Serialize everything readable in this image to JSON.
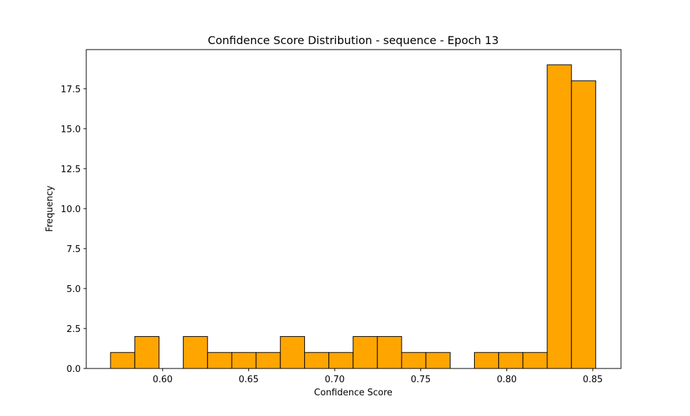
{
  "chart_data": {
    "type": "bar",
    "title": "Confidence Score Distribution - sequence - Epoch 13",
    "xlabel": "Confidence Score",
    "ylabel": "Frequency",
    "xlim": [
      0.5556,
      0.8664
    ],
    "ylim": [
      0,
      19.95
    ],
    "x_ticks": [
      "0.60",
      "0.65",
      "0.70",
      "0.75",
      "0.80",
      "0.85"
    ],
    "x_tick_values": [
      0.6,
      0.65,
      0.7,
      0.75,
      0.8,
      0.85
    ],
    "y_ticks": [
      "0.0",
      "2.5",
      "5.0",
      "7.5",
      "10.0",
      "12.5",
      "15.0",
      "17.5"
    ],
    "y_tick_values": [
      0,
      2.5,
      5.0,
      7.5,
      10.0,
      12.5,
      15.0,
      17.5
    ],
    "bin_edges": [
      0.5697,
      0.5838,
      0.5979,
      0.612,
      0.6261,
      0.6402,
      0.6543,
      0.6684,
      0.6825,
      0.6966,
      0.7107,
      0.7248,
      0.7389,
      0.753,
      0.7671,
      0.7812,
      0.7953,
      0.8094,
      0.8235,
      0.8376,
      0.8517
    ],
    "values": [
      1,
      2,
      0,
      2,
      1,
      1,
      1,
      2,
      1,
      1,
      2,
      2,
      1,
      1,
      0,
      1,
      1,
      1,
      19,
      18
    ],
    "bar_color": "#FFA500",
    "edge_color": "#000000",
    "grid": false,
    "legend": false
  }
}
